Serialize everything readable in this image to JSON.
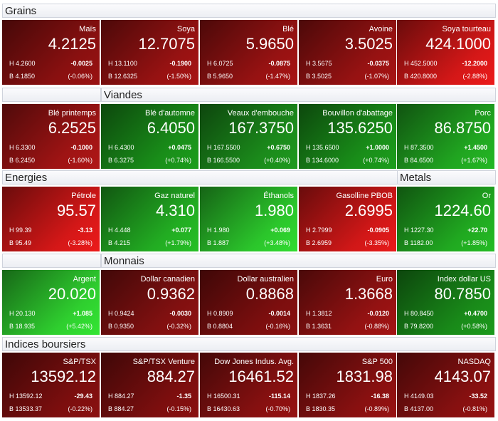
{
  "sections": [
    {
      "headers": [
        "Grains"
      ],
      "tiles": [
        {
          "name": "Maïs",
          "price": "4.2125",
          "high": "H 4.2600",
          "change": "-0.0025",
          "low": "B 4.1850",
          "pct": "(-0.06%)",
          "color": "#9a1212"
        },
        {
          "name": "Soya",
          "price": "12.7075",
          "high": "H 13.1100",
          "change": "-0.1900",
          "low": "B 12.6325",
          "pct": "(-1.50%)",
          "color": "#a81414"
        },
        {
          "name": "Blé",
          "price": "5.9650",
          "high": "H 6.0725",
          "change": "-0.0875",
          "low": "B 5.9650",
          "pct": "(-1.47%)",
          "color": "#a81414"
        },
        {
          "name": "Avoine",
          "price": "3.5025",
          "high": "H 3.5675",
          "change": "-0.0375",
          "low": "B 3.5025",
          "pct": "(-1.07%)",
          "color": "#a81414"
        },
        {
          "name": "Soya tourteau",
          "price": "424.1000",
          "high": "H 452.5000",
          "change": "-12.2000",
          "low": "B 420.8000",
          "pct": "(-2.88%)",
          "color": "#ec1a1a"
        }
      ]
    },
    {
      "headers": [
        null,
        "Viandes"
      ],
      "tiles": [
        {
          "name": "Blé printemps",
          "price": "6.2525",
          "high": "H 6.3300",
          "change": "-0.1000",
          "low": "B 6.2450",
          "pct": "(-1.60%)",
          "color": "#b01616"
        },
        {
          "name": "Blé d'automne",
          "price": "6.4050",
          "high": "H 6.4300",
          "change": "+0.0475",
          "low": "B 6.3275",
          "pct": "(+0.74%)",
          "color": "#1c9e1c"
        },
        {
          "name": "Veaux d'embouche",
          "price": "167.3750",
          "high": "H 167.5500",
          "change": "+0.6750",
          "low": "B 166.5500",
          "pct": "(+0.40%)",
          "color": "#1e9a1e"
        },
        {
          "name": "Bouvillon d'abattage",
          "price": "135.6250",
          "high": "H 135.6500",
          "change": "+1.0000",
          "low": "B 134.6000",
          "pct": "(+0.74%)",
          "color": "#1c9e1c"
        },
        {
          "name": "Porc",
          "price": "86.8750",
          "high": "H 87.3500",
          "change": "+1.4500",
          "low": "B 84.6500",
          "pct": "(+1.67%)",
          "color": "#24b824"
        }
      ]
    },
    {
      "headers": [
        "Energies",
        "Metals"
      ],
      "tiles": [
        {
          "name": "Pétrole",
          "price": "95.57",
          "high": "H 99.39",
          "change": "-3.13",
          "low": "B 95.49",
          "pct": "(-3.28%)",
          "color": "#ec1a1a"
        },
        {
          "name": "Gaz naturel",
          "price": "4.310",
          "high": "H 4.448",
          "change": "+0.077",
          "low": "B 4.215",
          "pct": "(+1.79%)",
          "color": "#26c026"
        },
        {
          "name": "Éthanols",
          "price": "1.980",
          "high": "H 1.980",
          "change": "+0.069",
          "low": "B 1.887",
          "pct": "(+3.48%)",
          "color": "#30dc30"
        },
        {
          "name": "Gasolline PBOB",
          "price": "2.6995",
          "high": "H 2.7999",
          "change": "-0.0905",
          "low": "B 2.6959",
          "pct": "(-3.35%)",
          "color": "#e81a1a"
        },
        {
          "name": "Or",
          "price": "1224.60",
          "high": "H 1227.30",
          "change": "+22.70",
          "low": "B 1182.00",
          "pct": "(+1.85%)",
          "color": "#24bc24"
        }
      ]
    },
    {
      "headers": [
        null,
        "Monnais"
      ],
      "tiles": [
        {
          "name": "Argent",
          "price": "20.020",
          "high": "H 20.130",
          "change": "+1.085",
          "low": "B 18.935",
          "pct": "(+5.42%)",
          "color": "#34e634"
        },
        {
          "name": "Dollar canadien",
          "price": "0.9362",
          "high": "H 0.9424",
          "change": "-0.0030",
          "low": "B 0.9350",
          "pct": "(-0.32%)",
          "color": "#901212"
        },
        {
          "name": "Dollar australien",
          "price": "0.8868",
          "high": "H 0.8909",
          "change": "-0.0014",
          "low": "B 0.8804",
          "pct": "(-0.16%)",
          "color": "#8a1010"
        },
        {
          "name": "Euro",
          "price": "1.3668",
          "high": "H 1.3812",
          "change": "-0.0120",
          "low": "B 1.3631",
          "pct": "(-0.88%)",
          "color": "#a41414"
        },
        {
          "name": "Index dollar US",
          "price": "80.7850",
          "high": "H 80.8450",
          "change": "+0.4700",
          "low": "B 79.8200",
          "pct": "(+0.58%)",
          "color": "#1c9a1c"
        }
      ]
    },
    {
      "headers": [
        "Indices boursiers"
      ],
      "tiles": [
        {
          "name": "S&P/TSX",
          "price": "13592.12",
          "high": "H 13592.12",
          "change": "-29.43",
          "low": "B 13533.37",
          "pct": "(-0.22%)",
          "color": "#8a1010"
        },
        {
          "name": "S&P/TSX Venture",
          "price": "884.27",
          "high": "H 884.27",
          "change": "-1.35",
          "low": "B 884.27",
          "pct": "(-0.15%)",
          "color": "#8a1010"
        },
        {
          "name": "Dow Jones Indus. Avg.",
          "price": "16461.52",
          "high": "H 16500.31",
          "change": "-115.14",
          "low": "B 16430.63",
          "pct": "(-0.70%)",
          "color": "#961212"
        },
        {
          "name": "S&P 500",
          "price": "1831.98",
          "high": "H 1837.26",
          "change": "-16.38",
          "low": "B 1830.35",
          "pct": "(-0.89%)",
          "color": "#981212"
        },
        {
          "name": "NASDAQ",
          "price": "4143.07",
          "high": "H 4149.03",
          "change": "-33.52",
          "low": "B 4137.00",
          "pct": "(-0.81%)",
          "color": "#961212"
        }
      ]
    }
  ]
}
